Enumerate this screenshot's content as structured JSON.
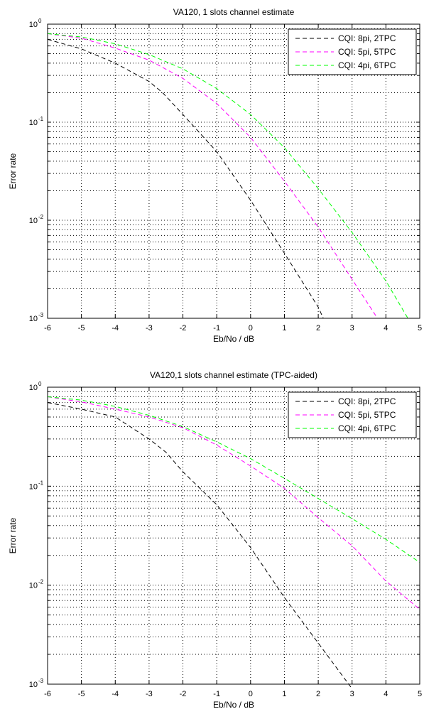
{
  "chart_data": [
    {
      "type": "line",
      "title": "VA120, 1 slots channel estimate",
      "xlabel": "Eb/No / dB",
      "ylabel": "Error rate",
      "xlim": [
        -6,
        5
      ],
      "ylim": [
        0.001,
        1
      ],
      "yscale": "log",
      "grid": true,
      "legend_position": "top-right",
      "x_ticks": [
        "-6",
        "-5",
        "-4",
        "-3",
        "-2",
        "-1",
        "0",
        "1",
        "2",
        "3",
        "4",
        "5"
      ],
      "y_ticks": [
        {
          "base": "10",
          "exp": "0"
        },
        {
          "base": "10",
          "exp": "-1"
        },
        {
          "base": "10",
          "exp": "-2"
        },
        {
          "base": "10",
          "exp": "-3"
        }
      ],
      "series": [
        {
          "name": "CQI: 8pi, 2TPC",
          "color": "#000000",
          "points": [
            [
              -6,
              0.7
            ],
            [
              -5,
              0.56
            ],
            [
              -4,
              0.4
            ],
            [
              -3,
              0.26
            ],
            [
              -2.6,
              0.2
            ],
            [
              -2,
              0.12
            ],
            [
              -1,
              0.05
            ],
            [
              0,
              0.016
            ],
            [
              1,
              0.0046
            ],
            [
              2,
              0.0013
            ],
            [
              2.15,
              0.001
            ]
          ]
        },
        {
          "name": "CQI: 5pi, 5TPC",
          "color": "#ff00ff",
          "points": [
            [
              -6,
              0.8
            ],
            [
              -5,
              0.72
            ],
            [
              -4,
              0.57
            ],
            [
              -3,
              0.43
            ],
            [
              -2,
              0.28
            ],
            [
              -1,
              0.155
            ],
            [
              0,
              0.07
            ],
            [
              1,
              0.025
            ],
            [
              2,
              0.0085
            ],
            [
              3,
              0.0025
            ],
            [
              3.75,
              0.001
            ]
          ]
        },
        {
          "name": "CQI: 4pi, 6TPC",
          "color": "#00ff00",
          "points": [
            [
              -6,
              0.8
            ],
            [
              -5,
              0.74
            ],
            [
              -4,
              0.63
            ],
            [
              -3,
              0.49
            ],
            [
              -2,
              0.35
            ],
            [
              -1,
              0.22
            ],
            [
              0,
              0.12
            ],
            [
              1,
              0.055
            ],
            [
              2,
              0.021
            ],
            [
              3,
              0.0075
            ],
            [
              4,
              0.0024
            ],
            [
              4.65,
              0.001
            ]
          ]
        }
      ]
    },
    {
      "type": "line",
      "title": "VA120,1 slots channel estimate (TPC-aided)",
      "xlabel": "Eb/No / dB",
      "ylabel": "Error rate",
      "xlim": [
        -6,
        5
      ],
      "ylim": [
        0.001,
        1
      ],
      "yscale": "log",
      "grid": true,
      "legend_position": "top-right",
      "x_ticks": [
        "-6",
        "-5",
        "-4",
        "-3",
        "-2",
        "-1",
        "0",
        "1",
        "2",
        "3",
        "4",
        "5"
      ],
      "y_ticks": [
        {
          "base": "10",
          "exp": "0"
        },
        {
          "base": "10",
          "exp": "-1"
        },
        {
          "base": "10",
          "exp": "-2"
        },
        {
          "base": "10",
          "exp": "-3"
        }
      ],
      "series": [
        {
          "name": "CQI: 8pi, 2TPC",
          "color": "#000000",
          "points": [
            [
              -6,
              0.7
            ],
            [
              -5,
              0.6
            ],
            [
              -4,
              0.5
            ],
            [
              -3,
              0.3
            ],
            [
              -2.5,
              0.22
            ],
            [
              -2,
              0.14
            ],
            [
              -1,
              0.065
            ],
            [
              0,
              0.024
            ],
            [
              1,
              0.0075
            ],
            [
              2,
              0.0026
            ],
            [
              3,
              0.0009
            ]
          ]
        },
        {
          "name": "CQI: 5pi, 5TPC",
          "color": "#ff00ff",
          "points": [
            [
              -6,
              0.8
            ],
            [
              -5,
              0.71
            ],
            [
              -4,
              0.6
            ],
            [
              -3,
              0.5
            ],
            [
              -2,
              0.39
            ],
            [
              -1,
              0.26
            ],
            [
              0,
              0.16
            ],
            [
              1,
              0.095
            ],
            [
              2,
              0.048
            ],
            [
              3,
              0.025
            ],
            [
              4,
              0.011
            ],
            [
              5,
              0.0057
            ]
          ]
        },
        {
          "name": "CQI: 4pi, 6TPC",
          "color": "#00ff00",
          "points": [
            [
              -6,
              0.8
            ],
            [
              -5,
              0.74
            ],
            [
              -4,
              0.64
            ],
            [
              -3,
              0.52
            ],
            [
              -2,
              0.4
            ],
            [
              -1,
              0.28
            ],
            [
              0,
              0.19
            ],
            [
              1,
              0.12
            ],
            [
              2,
              0.075
            ],
            [
              3,
              0.047
            ],
            [
              4,
              0.029
            ],
            [
              5,
              0.017
            ]
          ]
        }
      ]
    }
  ]
}
